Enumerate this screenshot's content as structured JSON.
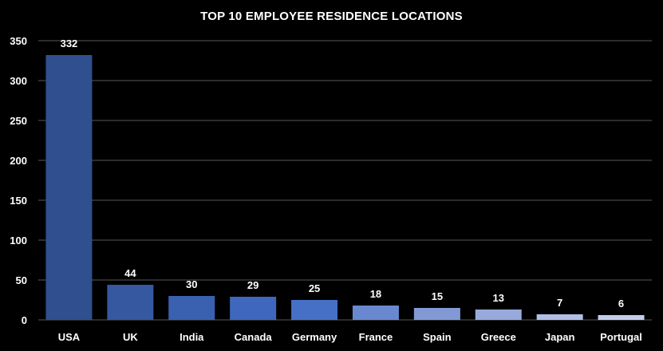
{
  "chart_data": {
    "type": "bar",
    "title": "TOP 10 EMPLOYEE RESIDENCE LOCATIONS",
    "xlabel": "",
    "ylabel": "",
    "categories": [
      "USA",
      "UK",
      "India",
      "Canada",
      "Germany",
      "France",
      "Spain",
      "Greece",
      "Japan",
      "Portugal"
    ],
    "values": [
      332,
      44,
      30,
      29,
      25,
      18,
      15,
      13,
      7,
      6
    ],
    "ylim": [
      0,
      350
    ],
    "yticks": [
      0,
      50,
      100,
      150,
      200,
      250,
      300,
      350
    ],
    "grid": true,
    "legend": "none",
    "bar_colors": [
      "#2f4f8f",
      "#3558a0",
      "#3a60b0",
      "#3e67bd",
      "#4570c6",
      "#6a88cf",
      "#8399d6",
      "#98aadc",
      "#b1bee6",
      "#c3cdeb"
    ],
    "background": "#000000",
    "gridline_color": "#595959",
    "text_color": "#ffffff"
  }
}
